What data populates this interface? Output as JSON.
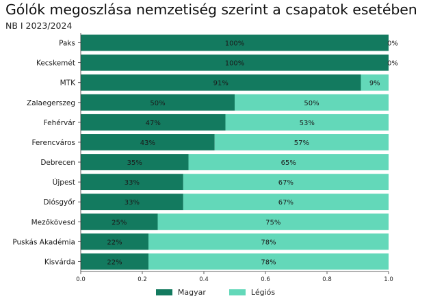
{
  "title": "Gólók megoszlása nemzetiség szerint a csapatok esetében",
  "subtitle": "NB I 2023/2024",
  "colors": {
    "magyar": "#137a5f",
    "legios": "#63d8b9"
  },
  "chart_data": {
    "type": "bar",
    "orientation": "horizontal",
    "stacked": true,
    "title": "Gólók megoszlása nemzetiség szerint a csapatok esetében",
    "subtitle": "NB I 2023/2024",
    "categories": [
      "Paks",
      "Kecskemét",
      "MTK",
      "Zalaegerszeg",
      "Fehérvár",
      "Ferencváros",
      "Debrecen",
      "Újpest",
      "Diósgyőr",
      "Mezőkövesd",
      "Puskás Akadémia",
      "Kisvárda"
    ],
    "series": [
      {
        "name": "Magyar",
        "values": [
          1.0,
          1.0,
          0.91,
          0.5,
          0.47,
          0.435,
          0.35,
          0.333,
          0.333,
          0.25,
          0.22,
          0.22
        ],
        "labels": [
          "100%",
          "100%",
          "91%",
          "50%",
          "47%",
          "43%",
          "35%",
          "33%",
          "33%",
          "25%",
          "22%",
          "22%"
        ]
      },
      {
        "name": "Légiós",
        "values": [
          0.0,
          0.0,
          0.09,
          0.5,
          0.53,
          0.565,
          0.65,
          0.667,
          0.667,
          0.75,
          0.78,
          0.78
        ],
        "labels": [
          "0%",
          "0%",
          "9%",
          "50%",
          "53%",
          "57%",
          "65%",
          "67%",
          "67%",
          "75%",
          "78%",
          "78%"
        ]
      }
    ],
    "xlim": [
      0,
      1
    ],
    "xticks": [
      "0.0",
      "0.2",
      "0.4",
      "0.6",
      "0.8",
      "1.0"
    ],
    "grid": false,
    "legend": "bottom-center"
  }
}
